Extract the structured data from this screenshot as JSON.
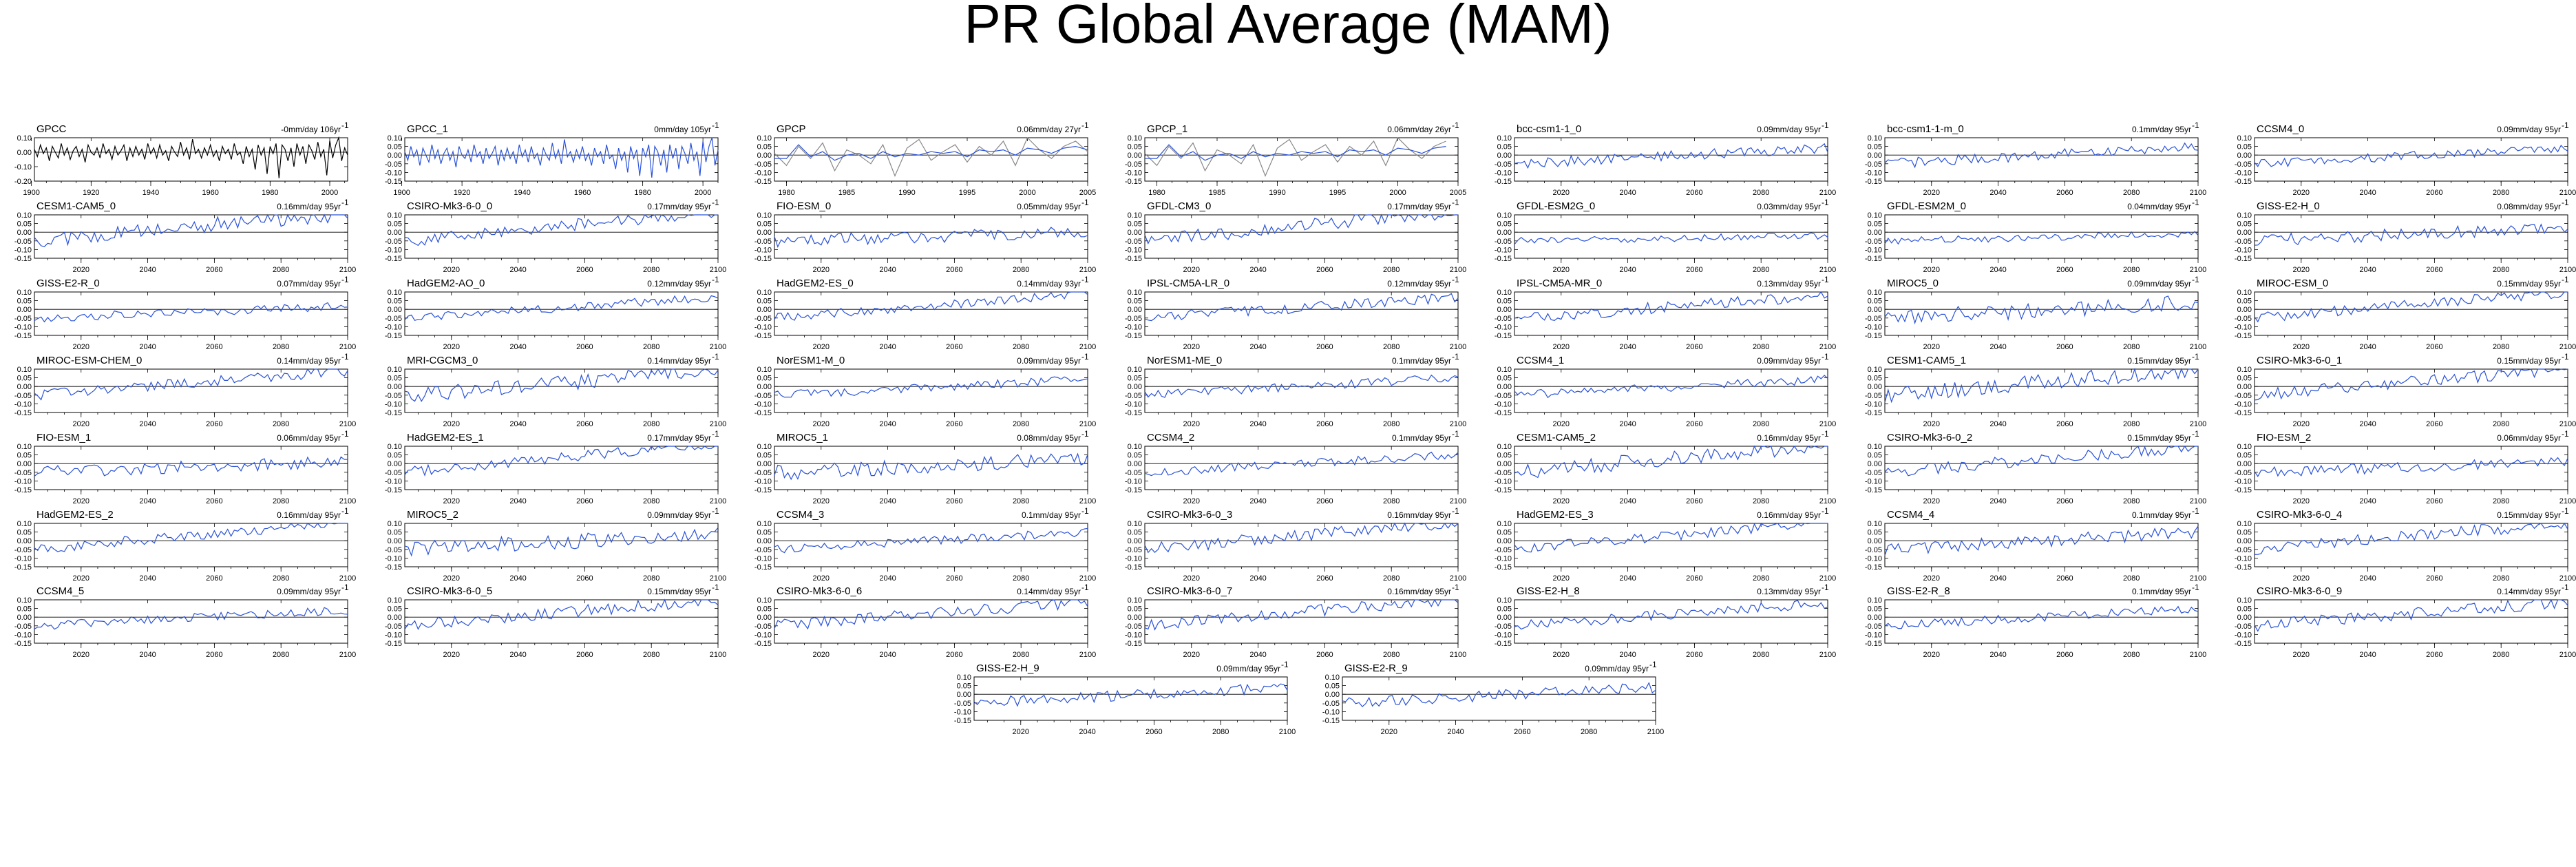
{
  "page": {
    "title": "PR Global Average (MAM)"
  },
  "colors": {
    "model_line": "#2a52d8",
    "obs_line": "#000000",
    "obs_line_secondary": "#888888",
    "frame": "#000000"
  },
  "chart_data": [
    {
      "type": "line",
      "title": "GPCC",
      "trend": "-0mm/day 106yr",
      "xlim": [
        1901,
        2006
      ],
      "ylim": [
        -0.2,
        0.1
      ],
      "yticks": [
        0.1,
        0.0,
        -0.1,
        -0.2
      ],
      "xticks": [
        1900,
        1920,
        1940,
        1960,
        1980,
        2000
      ],
      "series": [
        {
          "x_start": 1901,
          "x_end": 2006,
          "color": "#000000",
          "values": [
            0.02,
            -0.03,
            0.05,
            -0.01,
            0.03,
            -0.06,
            0.04,
            0.0,
            -0.04,
            0.06,
            -0.02,
            0.03,
            -0.05,
            0.01,
            0.04,
            -0.03,
            0.02,
            -0.07,
            0.05,
            0.0,
            -0.02,
            0.03,
            -0.04,
            0.06,
            -0.01,
            0.02,
            -0.05,
            0.04,
            -0.02,
            0.01,
            0.05,
            -0.06,
            0.03,
            -0.03,
            0.04,
            -0.02,
            0.02,
            -0.05,
            0.06,
            -0.01,
            0.03,
            -0.04,
            0.05,
            -0.02,
            0.01,
            -0.06,
            0.04,
            0.0,
            -0.03,
            0.07,
            -0.02,
            0.03,
            -0.05,
            0.09,
            -0.01,
            0.02,
            -0.04,
            0.03,
            -0.02,
            0.05,
            -0.03,
            0.01,
            -0.06,
            0.04,
            -0.01,
            0.02,
            -0.05,
            0.06,
            -0.02,
            0.0,
            -0.08,
            0.04,
            -0.03,
            0.02,
            -0.12,
            0.05,
            -0.02,
            0.03,
            -0.15,
            0.04,
            -0.01,
            0.06,
            -0.18,
            0.05,
            0.02,
            -0.06,
            0.03,
            -0.1,
            0.06,
            -0.02,
            0.04,
            -0.08,
            0.05,
            0.01,
            -0.05,
            0.07,
            -0.03,
            0.02,
            -0.16,
            0.08,
            -0.04,
            0.05,
            0.12,
            -0.06,
            0.03,
            -0.02
          ]
        }
      ]
    },
    {
      "type": "line",
      "title": "GPCC_1",
      "trend": "0mm/day 105yr",
      "xlim": [
        1901,
        2005
      ],
      "ylim": [
        -0.15,
        0.1
      ],
      "yticks": [
        0.1,
        0.05,
        0.0,
        -0.05,
        -0.1,
        -0.15
      ],
      "xticks": [
        1900,
        1920,
        1940,
        1960,
        1980,
        2000
      ],
      "series": [
        {
          "x_start": 1901,
          "x_end": 2005,
          "color": "#2a52d8",
          "values": [
            0.02,
            -0.03,
            0.05,
            -0.01,
            0.03,
            -0.06,
            0.04,
            0.0,
            -0.04,
            0.06,
            -0.02,
            0.03,
            -0.05,
            0.01,
            0.04,
            -0.03,
            0.02,
            -0.07,
            0.05,
            0.0,
            -0.02,
            0.03,
            -0.04,
            0.06,
            -0.01,
            0.02,
            -0.05,
            0.04,
            -0.02,
            0.01,
            0.05,
            -0.06,
            0.03,
            -0.03,
            0.04,
            -0.02,
            0.02,
            -0.05,
            0.06,
            -0.01,
            0.03,
            -0.04,
            0.05,
            -0.02,
            0.01,
            -0.06,
            0.04,
            0.0,
            -0.03,
            0.07,
            -0.02,
            0.03,
            -0.05,
            0.09,
            -0.01,
            0.02,
            -0.04,
            0.03,
            -0.02,
            0.05,
            -0.03,
            0.01,
            -0.06,
            0.04,
            -0.01,
            0.02,
            -0.05,
            0.06,
            -0.02,
            0.0,
            -0.08,
            0.04,
            -0.03,
            0.02,
            -0.1,
            0.05,
            -0.02,
            0.03,
            -0.12,
            0.04,
            -0.01,
            0.06,
            -0.13,
            0.05,
            0.02,
            -0.06,
            0.03,
            -0.1,
            0.06,
            -0.02,
            0.04,
            -0.08,
            0.05,
            0.01,
            -0.05,
            0.07,
            -0.03,
            0.02,
            -0.12,
            0.08,
            -0.04,
            0.05,
            0.1,
            -0.06,
            0.03
          ]
        }
      ]
    },
    {
      "type": "line",
      "title": "GPCP",
      "trend": "0.06mm/day 27yr",
      "xlim": [
        1979,
        2005
      ],
      "ylim": [
        -0.15,
        0.1
      ],
      "yticks": [
        0.1,
        0.05,
        0.0,
        -0.05,
        -0.1,
        -0.15
      ],
      "xticks": [
        1980,
        1985,
        1990,
        1995,
        2000,
        2005
      ],
      "series": [
        {
          "x_start": 1979,
          "x_end": 2005,
          "color": "#888888",
          "values": [
            0.01,
            -0.06,
            0.05,
            -0.02,
            0.07,
            -0.09,
            0.03,
            0.0,
            -0.05,
            0.06,
            -0.12,
            0.04,
            0.09,
            -0.03,
            0.02,
            0.06,
            -0.04,
            0.05,
            0.0,
            0.08,
            -0.06,
            0.1,
            0.03,
            -0.02,
            0.05,
            0.08,
            0.02
          ]
        },
        {
          "x_start": 1979,
          "x_end": 2005,
          "color": "#2a52d8",
          "values": [
            -0.02,
            -0.02,
            0.06,
            -0.01,
            0.02,
            -0.03,
            0.0,
            0.01,
            -0.02,
            0.02,
            -0.01,
            0.01,
            0.0,
            0.02,
            0.01,
            0.02,
            -0.01,
            0.03,
            0.02,
            0.03,
            0.0,
            0.04,
            0.03,
            0.01,
            0.04,
            0.05,
            0.03
          ]
        }
      ]
    },
    {
      "type": "line",
      "title": "GPCP_1",
      "trend": "0.06mm/day 26yr",
      "xlim": [
        1979,
        2005
      ],
      "ylim": [
        -0.15,
        0.1
      ],
      "yticks": [
        0.1,
        0.05,
        0.0,
        -0.05,
        -0.1,
        -0.15
      ],
      "xticks": [
        1980,
        1985,
        1990,
        1995,
        2000,
        2005
      ],
      "series": [
        {
          "x_start": 1979,
          "x_end": 2004,
          "color": "#888888",
          "values": [
            0.01,
            -0.06,
            0.05,
            -0.02,
            0.07,
            -0.09,
            0.03,
            0.0,
            -0.05,
            0.06,
            -0.12,
            0.04,
            0.09,
            -0.03,
            0.02,
            0.06,
            -0.04,
            0.05,
            0.0,
            0.08,
            -0.06,
            0.1,
            0.03,
            -0.02,
            0.05,
            0.08
          ]
        },
        {
          "x_start": 1979,
          "x_end": 2004,
          "color": "#2a52d8",
          "values": [
            -0.02,
            -0.02,
            0.06,
            -0.01,
            0.02,
            -0.03,
            0.0,
            0.01,
            -0.02,
            0.02,
            -0.01,
            0.01,
            0.0,
            0.02,
            0.01,
            0.02,
            -0.01,
            0.03,
            0.02,
            0.03,
            0.0,
            0.04,
            0.03,
            0.01,
            0.04,
            0.05
          ]
        }
      ]
    },
    {
      "type": "line",
      "title": "bcc-csm1-1_0",
      "trend": "0.09mm/day 95yr",
      "amp": 0.03
    },
    {
      "type": "line",
      "title": "bcc-csm1-1-m_0",
      "trend": "0.1mm/day 95yr",
      "amp": 0.03
    },
    {
      "type": "line",
      "title": "CCSM4_0",
      "trend": "0.09mm/day 95yr",
      "amp": 0.025
    },
    {
      "type": "line",
      "title": "CESM1-CAM5_0",
      "trend": "0.16mm/day 95yr",
      "amp": 0.045
    },
    {
      "type": "line",
      "title": "CSIRO-Mk3-6-0_0",
      "trend": "0.17mm/day 95yr",
      "amp": 0.035
    },
    {
      "type": "line",
      "title": "FIO-ESM_0",
      "trend": "0.05mm/day 95yr",
      "amp": 0.035
    },
    {
      "type": "line",
      "title": "GFDL-CM3_0",
      "trend": "0.17mm/day 95yr",
      "amp": 0.04
    },
    {
      "type": "line",
      "title": "GFDL-ESM2G_0",
      "trend": "0.03mm/day 95yr",
      "amp": 0.02
    },
    {
      "type": "line",
      "title": "GFDL-ESM2M_0",
      "trend": "0.04mm/day 95yr",
      "amp": 0.02
    },
    {
      "type": "line",
      "title": "GISS-E2-H_0",
      "trend": "0.08mm/day 95yr",
      "amp": 0.035
    },
    {
      "type": "line",
      "title": "GISS-E2-R_0",
      "trend": "0.07mm/day 95yr",
      "amp": 0.025
    },
    {
      "type": "line",
      "title": "HadGEM2-AO_0",
      "trend": "0.12mm/day 95yr",
      "amp": 0.025
    },
    {
      "type": "line",
      "title": "HadGEM2-ES_0",
      "trend": "0.14mm/day 93yr",
      "amp": 0.025
    },
    {
      "type": "line",
      "title": "IPSL-CM5A-LR_0",
      "trend": "0.12mm/day 95yr",
      "amp": 0.03
    },
    {
      "type": "line",
      "title": "IPSL-CM5A-MR_0",
      "trend": "0.13mm/day 95yr",
      "amp": 0.035
    },
    {
      "type": "line",
      "title": "MIROC5_0",
      "trend": "0.09mm/day 95yr",
      "amp": 0.045
    },
    {
      "type": "line",
      "title": "MIROC-ESM_0",
      "trend": "0.15mm/day 95yr",
      "amp": 0.03
    },
    {
      "type": "line",
      "title": "MIROC-ESM-CHEM_0",
      "trend": "0.14mm/day 95yr",
      "amp": 0.03
    },
    {
      "type": "line",
      "title": "MRI-CGCM3_0",
      "trend": "0.14mm/day 95yr",
      "amp": 0.045
    },
    {
      "type": "line",
      "title": "NorESM1-M_0",
      "trend": "0.09mm/day 95yr",
      "amp": 0.025
    },
    {
      "type": "line",
      "title": "NorESM1-ME_0",
      "trend": "0.1mm/day 95yr",
      "amp": 0.025
    },
    {
      "type": "line",
      "title": "CCSM4_1",
      "trend": "0.09mm/day 95yr",
      "amp": 0.025
    },
    {
      "type": "line",
      "title": "CESM1-CAM5_1",
      "trend": "0.15mm/day 95yr",
      "amp": 0.045
    },
    {
      "type": "line",
      "title": "CSIRO-Mk3-6-0_1",
      "trend": "0.15mm/day 95yr",
      "amp": 0.035
    },
    {
      "type": "line",
      "title": "FIO-ESM_1",
      "trend": "0.06mm/day 95yr",
      "amp": 0.035
    },
    {
      "type": "line",
      "title": "HadGEM2-ES_1",
      "trend": "0.17mm/day 95yr",
      "amp": 0.03
    },
    {
      "type": "line",
      "title": "MIROC5_1",
      "trend": "0.08mm/day 95yr",
      "amp": 0.045
    },
    {
      "type": "line",
      "title": "CCSM4_2",
      "trend": "0.1mm/day 95yr",
      "amp": 0.025
    },
    {
      "type": "line",
      "title": "CESM1-CAM5_2",
      "trend": "0.16mm/day 95yr",
      "amp": 0.045
    },
    {
      "type": "line",
      "title": "CSIRO-Mk3-6-0_2",
      "trend": "0.15mm/day 95yr",
      "amp": 0.035
    },
    {
      "type": "line",
      "title": "FIO-ESM_2",
      "trend": "0.06mm/day 95yr",
      "amp": 0.03
    },
    {
      "type": "line",
      "title": "HadGEM2-ES_2",
      "trend": "0.16mm/day 95yr",
      "amp": 0.03
    },
    {
      "type": "line",
      "title": "MIROC5_2",
      "trend": "0.09mm/day 95yr",
      "amp": 0.045
    },
    {
      "type": "line",
      "title": "CCSM4_3",
      "trend": "0.1mm/day 95yr",
      "amp": 0.025
    },
    {
      "type": "line",
      "title": "CSIRO-Mk3-6-0_3",
      "trend": "0.16mm/day 95yr",
      "amp": 0.035
    },
    {
      "type": "line",
      "title": "HadGEM2-ES_3",
      "trend": "0.16mm/day 95yr",
      "amp": 0.03
    },
    {
      "type": "line",
      "title": "CCSM4_4",
      "trend": "0.1mm/day 95yr",
      "amp": 0.035
    },
    {
      "type": "line",
      "title": "CSIRO-Mk3-6-0_4",
      "trend": "0.15mm/day 95yr",
      "amp": 0.035
    },
    {
      "type": "line",
      "title": "CCSM4_5",
      "trend": "0.09mm/day 95yr",
      "amp": 0.025
    },
    {
      "type": "line",
      "title": "CSIRO-Mk3-6-0_5",
      "trend": "0.15mm/day 95yr",
      "amp": 0.035
    },
    {
      "type": "line",
      "title": "CSIRO-Mk3-6-0_6",
      "trend": "0.14mm/day 95yr",
      "amp": 0.035
    },
    {
      "type": "line",
      "title": "CSIRO-Mk3-6-0_7",
      "trend": "0.16mm/day 95yr",
      "amp": 0.035
    },
    {
      "type": "line",
      "title": "GISS-E2-H_8",
      "trend": "0.13mm/day 95yr",
      "amp": 0.03
    },
    {
      "type": "line",
      "title": "GISS-E2-R_8",
      "trend": "0.1mm/day 95yr",
      "amp": 0.025
    },
    {
      "type": "line",
      "title": "CSIRO-Mk3-6-0_9",
      "trend": "0.14mm/day 95yr",
      "amp": 0.035
    },
    {
      "type": "line",
      "title": "GISS-E2-H_9",
      "trend": "0.09mm/day 95yr",
      "amp": 0.03
    },
    {
      "type": "line",
      "title": "GISS-E2-R_9",
      "trend": "0.09mm/day 95yr",
      "amp": 0.03
    }
  ],
  "model_defaults": {
    "xlim": [
      2006,
      2100
    ],
    "ylim": [
      -0.15,
      0.1
    ],
    "yticks": [
      0.1,
      0.05,
      0.0,
      -0.05,
      -0.1,
      -0.15
    ],
    "xticks": [
      2020,
      2040,
      2060,
      2080,
      2100
    ],
    "start_value": -0.05
  }
}
